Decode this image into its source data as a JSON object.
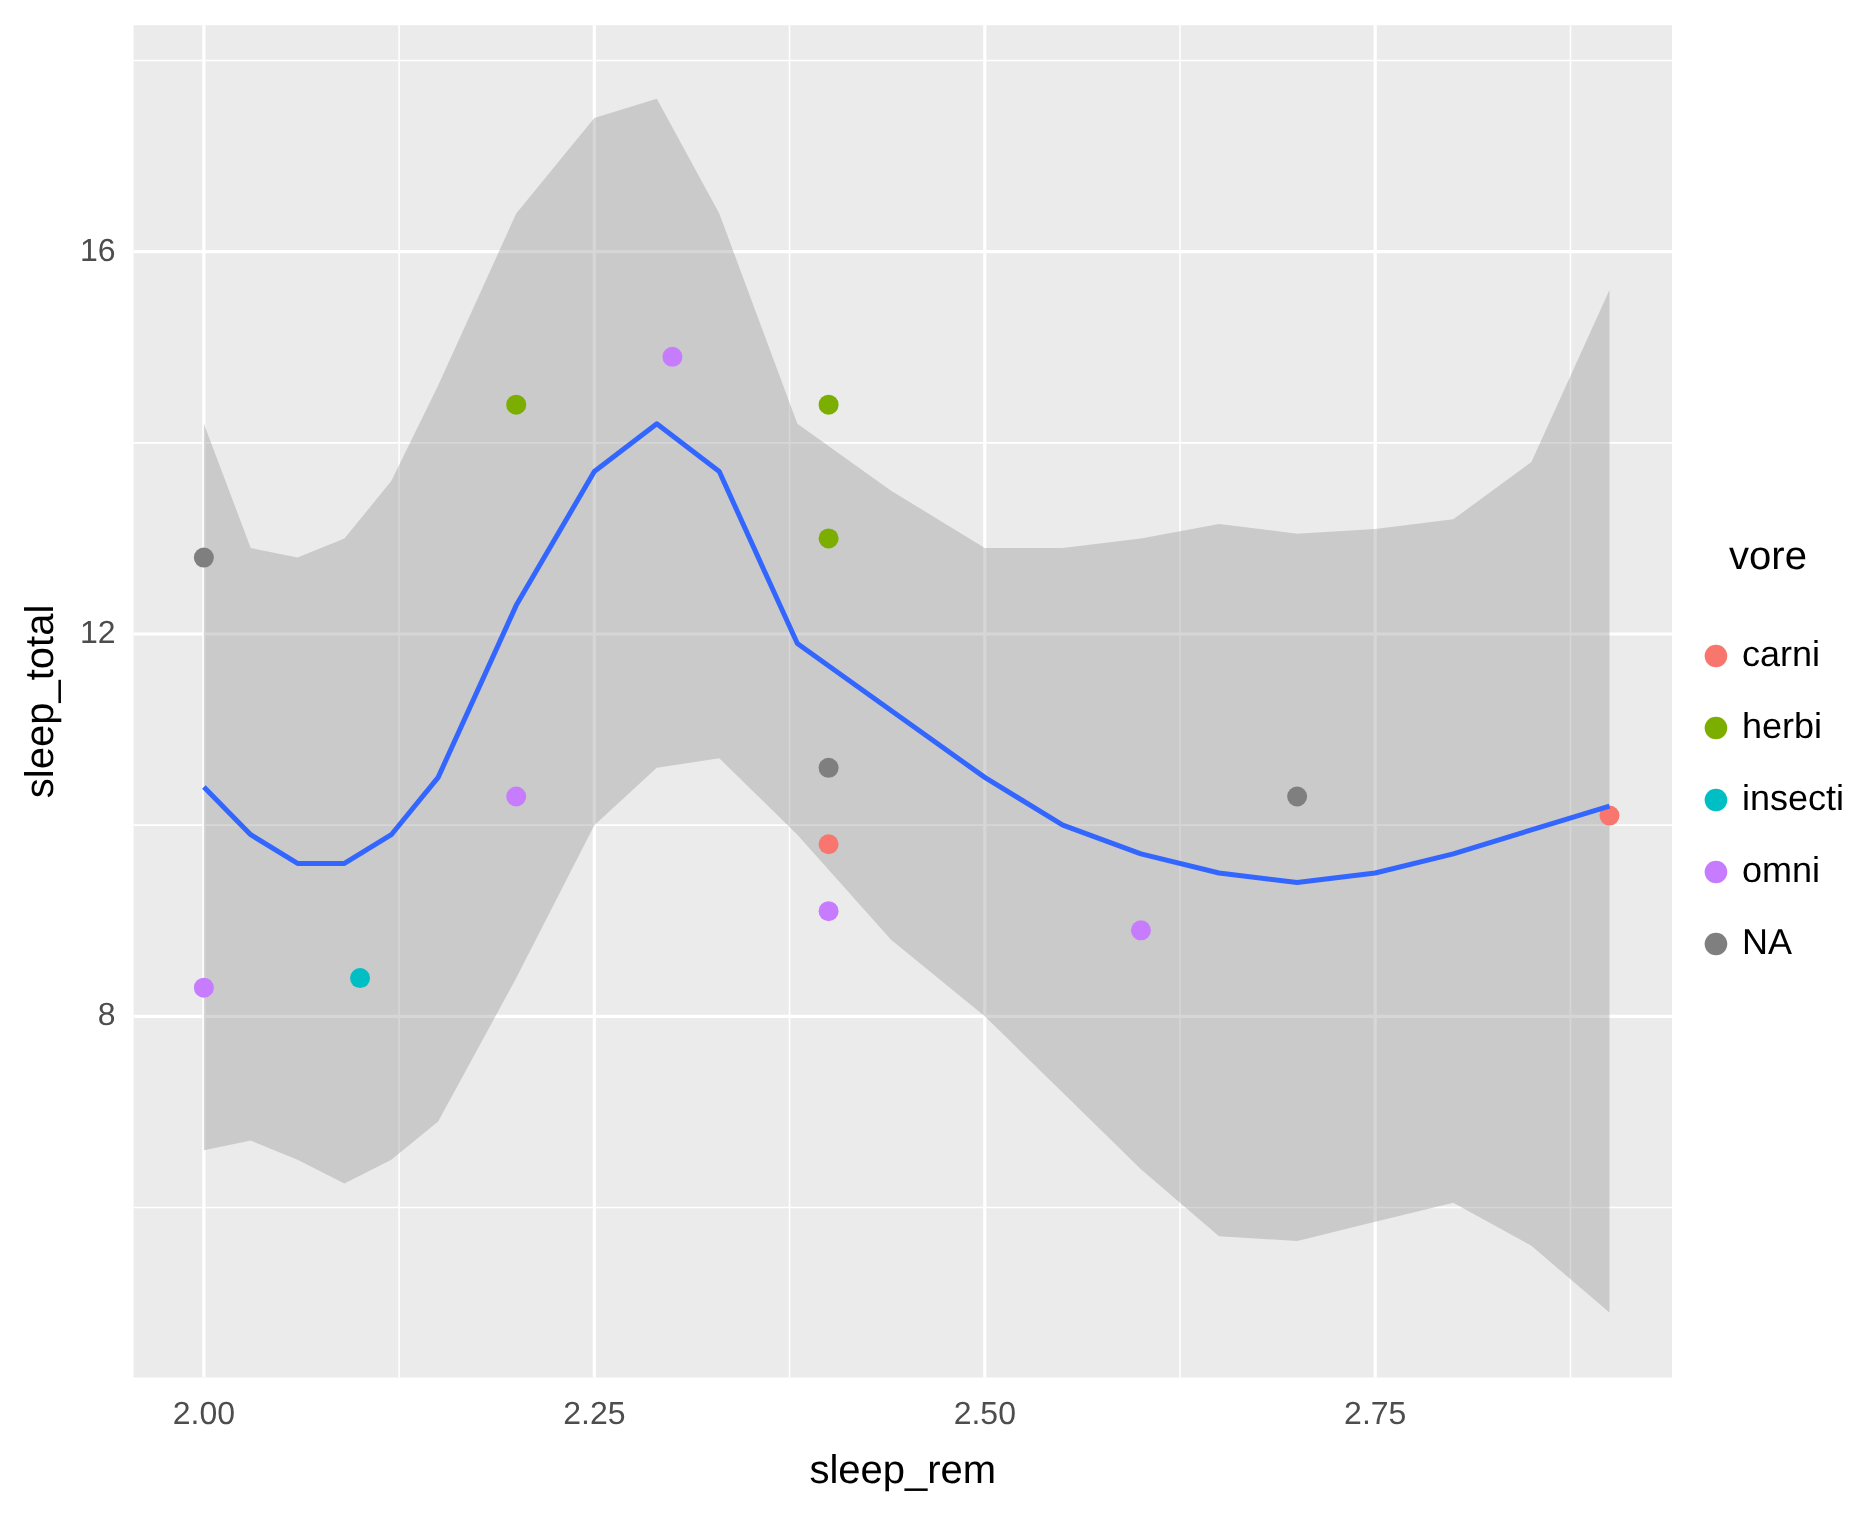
{
  "chart_data": {
    "type": "scatter",
    "xlabel": "sleep_rem",
    "ylabel": "sleep_total",
    "legend_title": "vore",
    "legend": "right",
    "grid": true,
    "marker": "circle",
    "xlim": [
      1.955,
      2.94
    ],
    "xticks": [
      {
        "value": 2,
        "label": "2.00"
      },
      2.25,
      {
        "value": 2.5,
        "label": "2.50"
      },
      2.75
    ],
    "ylim": [
      4.22,
      18.37
    ],
    "yticks": [
      8,
      12,
      16
    ],
    "series": [
      {
        "type": "line",
        "color": "#3366ff",
        "marker": "none",
        "line_style": "solid",
        "x": [
          2.0,
          2.03,
          2.06,
          2.09,
          2.12,
          2.15,
          2.2,
          2.25,
          2.29,
          2.33,
          2.38,
          2.44,
          2.5,
          2.55,
          2.6,
          2.65,
          2.7,
          2.75,
          2.8,
          2.85,
          2.9
        ],
        "values": [
          10.4,
          9.9,
          9.6,
          9.6,
          9.9,
          10.5,
          12.3,
          13.7,
          14.2,
          13.7,
          11.9,
          11.2,
          10.5,
          10.0,
          9.7,
          9.5,
          9.4,
          9.5,
          9.7,
          9.95,
          10.2
        ],
        "upper": [
          14.2,
          12.9,
          12.8,
          13.0,
          13.6,
          14.6,
          16.4,
          17.4,
          17.6,
          16.4,
          14.2,
          13.5,
          12.9,
          12.9,
          13.0,
          13.15,
          13.05,
          13.1,
          13.2,
          13.8,
          15.6
        ],
        "lower": [
          6.6,
          6.7,
          6.5,
          6.25,
          6.5,
          6.9,
          8.4,
          10.0,
          10.6,
          10.7,
          9.9,
          8.8,
          8.0,
          7.2,
          6.4,
          5.7,
          5.65,
          5.85,
          6.05,
          5.6,
          4.9
        ]
      },
      {
        "name": "carni",
        "color": "#f8766d",
        "x": [
          2.4,
          2.9
        ],
        "values": [
          9.8,
          10.1
        ]
      },
      {
        "name": "herbi",
        "color": "#7cae00",
        "x": [
          2.2,
          2.4,
          2.4
        ],
        "values": [
          14.4,
          14.4,
          13.0
        ]
      },
      {
        "name": "insecti",
        "color": "#00bfc4",
        "x": [
          2.1
        ],
        "values": [
          8.4
        ]
      },
      {
        "name": "omni",
        "color": "#c77cff",
        "x": [
          2.0,
          2.2,
          2.3,
          2.4,
          2.6
        ],
        "values": [
          8.3,
          10.3,
          14.9,
          9.1,
          8.9
        ]
      },
      {
        "name": "NA",
        "color": "#7f7f7f",
        "x": [
          2.0,
          2.4,
          2.7
        ],
        "values": [
          12.8,
          10.6,
          10.3
        ]
      }
    ]
  }
}
